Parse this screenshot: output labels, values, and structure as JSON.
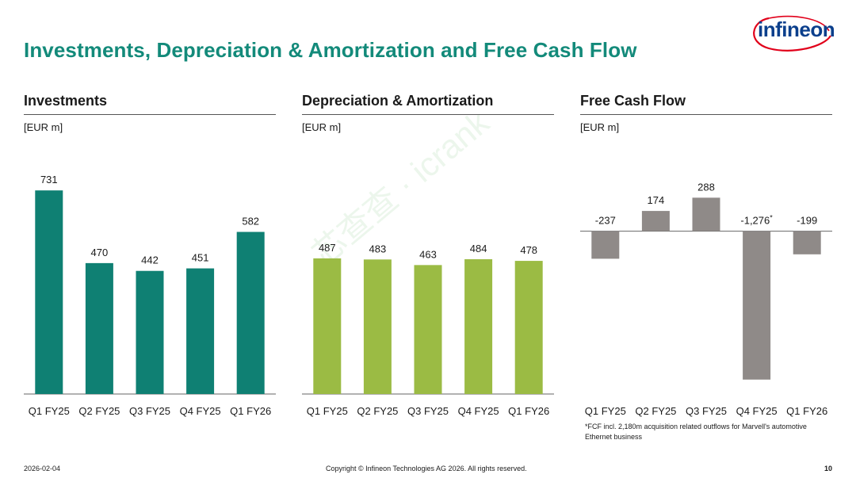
{
  "header": {
    "title": "Investments, Depreciation & Amortization and Free Cash Flow",
    "logo_text": "infineon"
  },
  "watermark": "芯查查 · icrank",
  "colors": {
    "title": "#138a7a",
    "investments": "#0f8073",
    "depreciation": "#9bbb44",
    "fcf": "#8f8a88",
    "logo": "#0b3f8c",
    "logo_swoosh": "#e1001a"
  },
  "chart_data": [
    {
      "type": "bar",
      "title": "Investments",
      "unit_label": "[EUR m]",
      "categories": [
        "Q1 FY25",
        "Q2 FY25",
        "Q3 FY25",
        "Q4 FY25",
        "Q1 FY26"
      ],
      "values": [
        731,
        470,
        442,
        451,
        582
      ],
      "value_labels": [
        "731",
        "470",
        "442",
        "451",
        "582"
      ],
      "ylim": [
        0,
        760
      ]
    },
    {
      "type": "bar",
      "title": "Depreciation & Amortization",
      "unit_label": "[EUR m]",
      "categories": [
        "Q1 FY25",
        "Q2 FY25",
        "Q3 FY25",
        "Q4 FY25",
        "Q1 FY26"
      ],
      "values": [
        487,
        483,
        463,
        484,
        478
      ],
      "value_labels": [
        "487",
        "483",
        "463",
        "484",
        "478"
      ],
      "ylim": [
        0,
        760
      ]
    },
    {
      "type": "bar",
      "title": "Free Cash Flow",
      "unit_label": "[EUR m]",
      "categories": [
        "Q1 FY25",
        "Q2 FY25",
        "Q3 FY25",
        "Q4 FY25",
        "Q1 FY26"
      ],
      "values": [
        -237,
        174,
        288,
        -1276,
        -199
      ],
      "value_labels": [
        "-237",
        "174",
        "288",
        "-1,276",
        "-199"
      ],
      "value_label_notes": [
        "",
        "",
        "",
        "*",
        ""
      ],
      "ylim": [
        -1400,
        420
      ],
      "footnote": "*FCF incl. 2,180m acquisition related outflows for Marvell's automotive Ethernet business"
    }
  ],
  "footer": {
    "date": "2026-02-04",
    "copyright": "Copyright © Infineon Technologies AG 2026. All rights reserved.",
    "page_number": "10"
  }
}
